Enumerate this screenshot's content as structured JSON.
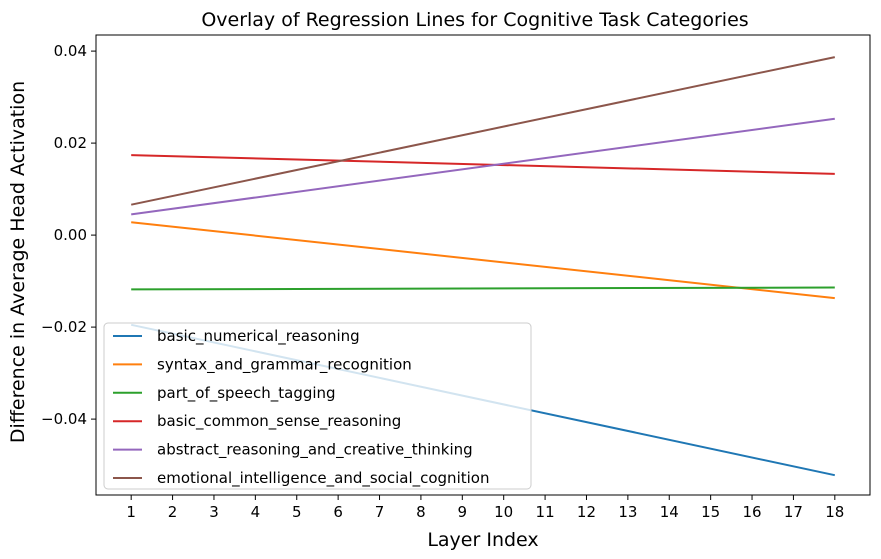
{
  "chart_data": {
    "type": "line",
    "title": "Overlay of Regression Lines for Cognitive Task Categories",
    "xlabel": "Layer Index",
    "ylabel": "Difference in Average Head Activation",
    "xlim": [
      0.15,
      18.85
    ],
    "ylim": [
      -0.0565,
      0.0435
    ],
    "x_ticks": [
      1,
      2,
      3,
      4,
      5,
      6,
      7,
      8,
      9,
      10,
      11,
      12,
      13,
      14,
      15,
      16,
      17,
      18
    ],
    "y_ticks": [
      -0.04,
      -0.02,
      0.0,
      0.02,
      0.04
    ],
    "y_tick_labels": [
      "−0.04",
      "−0.02",
      "0.00",
      "0.02",
      "0.04"
    ],
    "grid": false,
    "legend_position": "lower-left",
    "series": [
      {
        "name": "basic_numerical_reasoning",
        "color": "#1f77b4",
        "x": [
          1,
          18
        ],
        "y": [
          -0.0195,
          -0.0522
        ]
      },
      {
        "name": "syntax_and_grammar_recognition",
        "color": "#ff7f0e",
        "x": [
          1,
          18
        ],
        "y": [
          0.0028,
          -0.0137
        ]
      },
      {
        "name": "part_of_speech_tagging",
        "color": "#2ca02c",
        "x": [
          1,
          18
        ],
        "y": [
          -0.0118,
          -0.0114
        ]
      },
      {
        "name": "basic_common_sense_reasoning",
        "color": "#d62728",
        "x": [
          1,
          18
        ],
        "y": [
          0.0174,
          0.0133
        ]
      },
      {
        "name": "abstract_reasoning_and_creative_thinking",
        "color": "#9467bd",
        "x": [
          1,
          18
        ],
        "y": [
          0.0045,
          0.0253
        ]
      },
      {
        "name": "emotional_intelligence_and_social_cognition",
        "color": "#8c564b",
        "x": [
          1,
          18
        ],
        "y": [
          0.0066,
          0.0387
        ]
      }
    ]
  }
}
